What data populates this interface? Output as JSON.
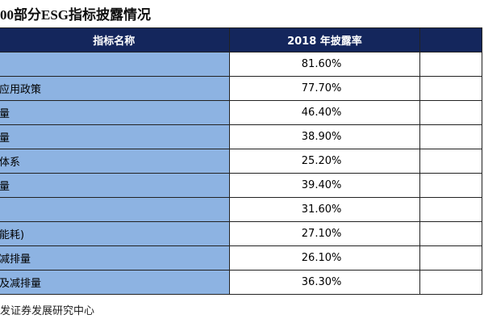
{
  "header": {
    "title": "00部分ESG指标披露情况"
  },
  "table": {
    "columns": [
      "指标名称",
      "2018 年披露率"
    ],
    "rows": [
      {
        "rate": "81.60%"
      },
      {
        "label": "应用政策",
        "rate": "77.70%"
      },
      {
        "label": "量",
        "rate": "46.40%"
      },
      {
        "label": "量",
        "rate": "38.90%"
      },
      {
        "label": "体系",
        "rate": "25.20%"
      },
      {
        "label": "量",
        "rate": "39.40%"
      },
      {
        "rate": "31.60%"
      },
      {
        "label": "能耗)",
        "rate": "27.10%"
      },
      {
        "label": "减排量",
        "rate": "26.10%"
      },
      {
        "label": "及减排量",
        "rate": "36.30%"
      }
    ]
  },
  "footer": {
    "source": "发证券发展研究中心"
  }
}
